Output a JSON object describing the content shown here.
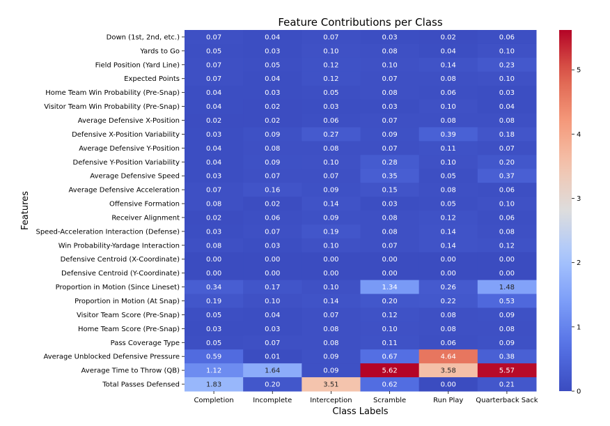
{
  "chart_data": {
    "type": "heatmap",
    "title": "Feature Contributions per Class",
    "xlabel": "Class Labels",
    "ylabel": "Features",
    "columns": [
      "Completion",
      "Incomplete",
      "Interception",
      "Scramble",
      "Run Play",
      "Quarterback Sack"
    ],
    "rows": [
      "Down (1st, 2nd, etc.)",
      "Yards to Go",
      "Field Position (Yard Line)",
      "Expected Points",
      "Home Team Win Probability (Pre-Snap)",
      "Visitor Team Win Probability (Pre-Snap)",
      "Average Defensive X-Position",
      "Defensive X-Position Variability",
      "Average Defensive Y-Position",
      "Defensive Y-Position Variability",
      "Average Defensive Speed",
      "Average Defensive Acceleration",
      "Offensive Formation",
      "Receiver Alignment",
      "Speed-Acceleration Interaction (Defense)",
      "Win Probability-Yardage Interaction",
      "Defensive Centroid (X-Coordinate)",
      "Defensive Centroid (Y-Coordinate)",
      "Proportion in Motion (Since Lineset)",
      "Proportion in Motion (At Snap)",
      "Visitor Team Score (Pre-Snap)",
      "Home Team Score (Pre-Snap)",
      "Pass Coverage Type",
      "Average Unblocked Defensive Pressure",
      "Average Time to Throw (QB)",
      "Total Passes Defensed"
    ],
    "values": [
      [
        0.07,
        0.04,
        0.07,
        0.03,
        0.02,
        0.06
      ],
      [
        0.05,
        0.03,
        0.1,
        0.08,
        0.04,
        0.1
      ],
      [
        0.07,
        0.05,
        0.12,
        0.1,
        0.14,
        0.23
      ],
      [
        0.07,
        0.04,
        0.12,
        0.07,
        0.08,
        0.1
      ],
      [
        0.04,
        0.03,
        0.05,
        0.08,
        0.06,
        0.03
      ],
      [
        0.04,
        0.02,
        0.03,
        0.03,
        0.1,
        0.04
      ],
      [
        0.02,
        0.02,
        0.06,
        0.07,
        0.08,
        0.08
      ],
      [
        0.03,
        0.09,
        0.27,
        0.09,
        0.39,
        0.18
      ],
      [
        0.04,
        0.08,
        0.08,
        0.07,
        0.11,
        0.07
      ],
      [
        0.04,
        0.09,
        0.1,
        0.28,
        0.1,
        0.2
      ],
      [
        0.03,
        0.07,
        0.07,
        0.35,
        0.05,
        0.37
      ],
      [
        0.07,
        0.16,
        0.09,
        0.15,
        0.08,
        0.06
      ],
      [
        0.08,
        0.02,
        0.14,
        0.03,
        0.05,
        0.1
      ],
      [
        0.02,
        0.06,
        0.09,
        0.08,
        0.12,
        0.06
      ],
      [
        0.03,
        0.07,
        0.19,
        0.08,
        0.14,
        0.08
      ],
      [
        0.08,
        0.03,
        0.1,
        0.07,
        0.14,
        0.12
      ],
      [
        0.0,
        0.0,
        0.0,
        0.0,
        0.0,
        0.0
      ],
      [
        0.0,
        0.0,
        0.0,
        0.0,
        0.0,
        0.0
      ],
      [
        0.34,
        0.17,
        0.1,
        1.34,
        0.26,
        1.48
      ],
      [
        0.19,
        0.1,
        0.14,
        0.2,
        0.22,
        0.53
      ],
      [
        0.05,
        0.04,
        0.07,
        0.12,
        0.08,
        0.09
      ],
      [
        0.03,
        0.03,
        0.08,
        0.1,
        0.08,
        0.08
      ],
      [
        0.05,
        0.07,
        0.08,
        0.11,
        0.06,
        0.09
      ],
      [
        0.59,
        0.01,
        0.09,
        0.67,
        4.64,
        0.38
      ],
      [
        1.12,
        1.64,
        0.09,
        5.62,
        3.58,
        5.57
      ],
      [
        1.83,
        0.2,
        3.51,
        0.62,
        0.0,
        0.21
      ]
    ],
    "colormap": "coolwarm",
    "vmin": 0,
    "vmax": 5.62,
    "colorbar_ticks": [
      0,
      1,
      2,
      3,
      4,
      5
    ],
    "value_format": "2 decimals"
  }
}
